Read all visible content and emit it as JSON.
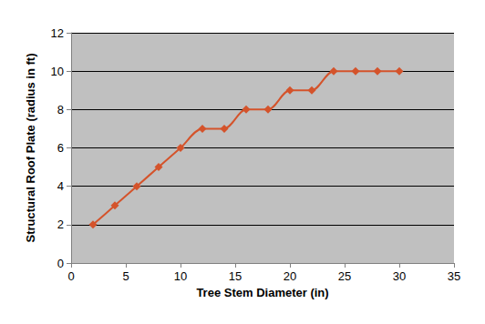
{
  "chart_data": {
    "type": "line",
    "x_label": "Tree Stem Diameter (in)",
    "y_label": "Structural Roof Plate (radius in ft)",
    "x": [
      2,
      4,
      6,
      8,
      10,
      12,
      14,
      16,
      18,
      20,
      22,
      24,
      26,
      28,
      30
    ],
    "values": [
      2,
      3,
      4,
      5,
      6,
      7,
      7,
      8,
      8,
      9,
      9,
      10,
      10,
      10,
      10
    ],
    "color": "#d4532b",
    "marker": "diamond",
    "xlim": [
      0,
      35
    ],
    "xticks": [
      0,
      5,
      10,
      15,
      20,
      25,
      30,
      35
    ],
    "ylim": [
      0,
      12
    ],
    "yticks": [
      0,
      2,
      4,
      6,
      8,
      10,
      12
    ],
    "grid": true
  }
}
